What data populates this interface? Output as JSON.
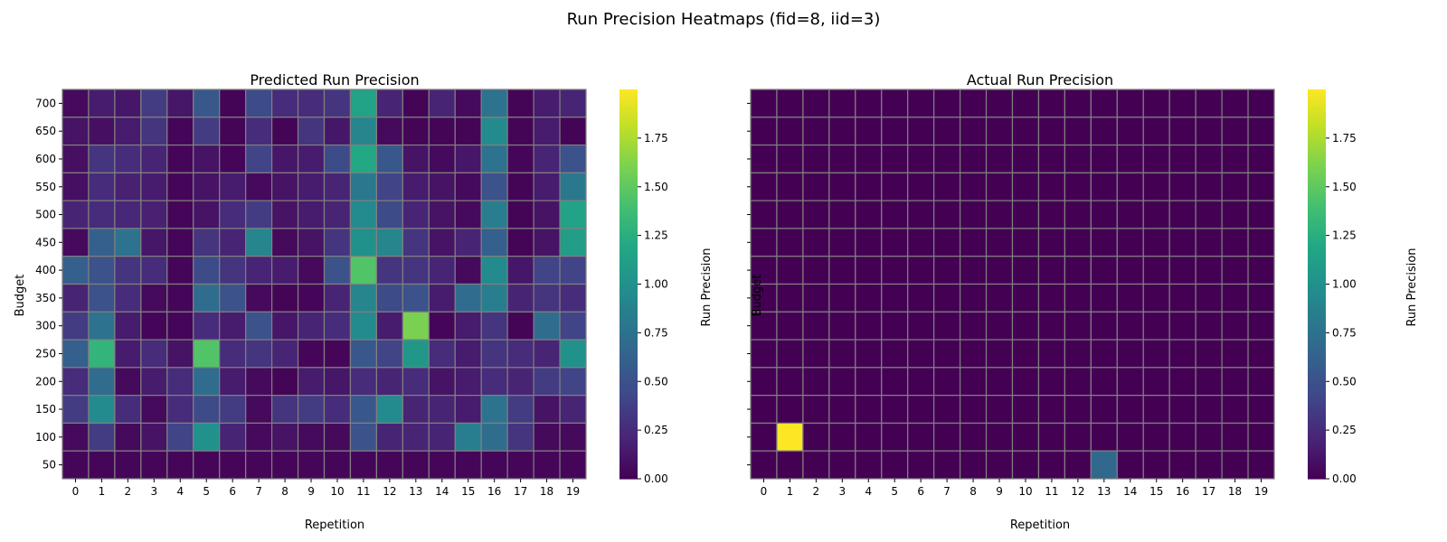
{
  "figure_title": "Run Precision Heatmaps (fid=8, iid=3)",
  "colormap": [
    "#440154",
    "#482475",
    "#414487",
    "#355f8d",
    "#2a788e",
    "#21918c",
    "#22a884",
    "#44bf70",
    "#7ad151",
    "#bddf26",
    "#fde725"
  ],
  "cell_border_color": "#808080",
  "chart_data": [
    {
      "type": "heatmap",
      "title": "Predicted Run Precision",
      "xlabel": "Repetition",
      "ylabel": "Budget",
      "x": [
        "0",
        "1",
        "2",
        "3",
        "4",
        "5",
        "6",
        "7",
        "8",
        "9",
        "10",
        "11",
        "12",
        "13",
        "14",
        "15",
        "16",
        "17",
        "18",
        "19"
      ],
      "y": [
        "700",
        "650",
        "600",
        "550",
        "500",
        "450",
        "400",
        "350",
        "300",
        "250",
        "200",
        "150",
        "100",
        "50"
      ],
      "colorbar_label": "Run Precision",
      "colorbar_ticks": [
        "0.00",
        "0.25",
        "0.50",
        "0.75",
        "1.00",
        "1.25",
        "1.50",
        "1.75"
      ],
      "vmin": 0,
      "vmax": 2.0,
      "values": [
        [
          0.05,
          0.15,
          0.12,
          0.35,
          0.12,
          0.55,
          0.02,
          0.45,
          0.25,
          0.25,
          0.3,
          1.15,
          0.2,
          0.02,
          0.2,
          0.05,
          0.75,
          0.02,
          0.15,
          0.2
        ],
        [
          0.1,
          0.08,
          0.15,
          0.3,
          0.03,
          0.35,
          0.02,
          0.25,
          0.02,
          0.3,
          0.12,
          0.9,
          0.05,
          0.02,
          0.02,
          0.02,
          0.95,
          0.02,
          0.15,
          0.02
        ],
        [
          0.08,
          0.3,
          0.25,
          0.2,
          0.03,
          0.1,
          0.03,
          0.4,
          0.12,
          0.15,
          0.45,
          1.2,
          0.55,
          0.1,
          0.05,
          0.12,
          0.75,
          0.03,
          0.2,
          0.5
        ],
        [
          0.08,
          0.25,
          0.18,
          0.15,
          0.03,
          0.1,
          0.15,
          0.05,
          0.1,
          0.15,
          0.2,
          0.8,
          0.4,
          0.15,
          0.1,
          0.05,
          0.5,
          0.02,
          0.15,
          0.8
        ],
        [
          0.2,
          0.25,
          0.22,
          0.18,
          0.03,
          0.1,
          0.25,
          0.35,
          0.1,
          0.15,
          0.2,
          0.95,
          0.45,
          0.2,
          0.1,
          0.05,
          0.85,
          0.02,
          0.1,
          1.15
        ],
        [
          0.05,
          0.6,
          0.75,
          0.12,
          0.03,
          0.3,
          0.2,
          0.9,
          0.05,
          0.1,
          0.3,
          1.0,
          0.9,
          0.3,
          0.1,
          0.2,
          0.6,
          0.02,
          0.1,
          1.1
        ],
        [
          0.6,
          0.5,
          0.3,
          0.25,
          0.03,
          0.45,
          0.3,
          0.2,
          0.15,
          0.05,
          0.5,
          1.45,
          0.3,
          0.3,
          0.2,
          0.05,
          0.95,
          0.12,
          0.4,
          0.4
        ],
        [
          0.2,
          0.5,
          0.25,
          0.05,
          0.03,
          0.7,
          0.5,
          0.05,
          0.02,
          0.03,
          0.2,
          0.9,
          0.45,
          0.5,
          0.15,
          0.7,
          0.85,
          0.2,
          0.3,
          0.25
        ],
        [
          0.35,
          0.75,
          0.15,
          0.03,
          0.03,
          0.25,
          0.15,
          0.5,
          0.12,
          0.2,
          0.25,
          0.95,
          0.15,
          1.6,
          0.03,
          0.15,
          0.3,
          0.02,
          0.7,
          0.4
        ],
        [
          0.6,
          1.3,
          0.15,
          0.25,
          0.1,
          1.45,
          0.25,
          0.3,
          0.2,
          0.03,
          0.03,
          0.55,
          0.4,
          1.05,
          0.25,
          0.15,
          0.3,
          0.25,
          0.2,
          1.0
        ],
        [
          0.25,
          0.7,
          0.05,
          0.15,
          0.25,
          0.7,
          0.15,
          0.05,
          0.02,
          0.15,
          0.12,
          0.25,
          0.2,
          0.25,
          0.1,
          0.15,
          0.25,
          0.2,
          0.35,
          0.4
        ],
        [
          0.35,
          0.95,
          0.25,
          0.05,
          0.25,
          0.45,
          0.35,
          0.05,
          0.3,
          0.35,
          0.25,
          0.55,
          0.95,
          0.2,
          0.2,
          0.15,
          0.75,
          0.35,
          0.1,
          0.2
        ],
        [
          0.05,
          0.35,
          0.05,
          0.1,
          0.4,
          1.0,
          0.2,
          0.05,
          0.1,
          0.05,
          0.05,
          0.5,
          0.2,
          0.2,
          0.2,
          0.85,
          0.7,
          0.3,
          0.05,
          0.05
        ],
        [
          0.03,
          0.03,
          0.03,
          0.03,
          0.03,
          0.03,
          0.03,
          0.03,
          0.03,
          0.03,
          0.03,
          0.03,
          0.03,
          0.03,
          0.03,
          0.03,
          0.03,
          0.03,
          0.03,
          0.03
        ]
      ]
    },
    {
      "type": "heatmap",
      "title": "Actual Run Precision",
      "xlabel": "Repetition",
      "ylabel": "Budget",
      "x": [
        "0",
        "1",
        "2",
        "3",
        "4",
        "5",
        "6",
        "7",
        "8",
        "9",
        "10",
        "11",
        "12",
        "13",
        "14",
        "15",
        "16",
        "17",
        "18",
        "19"
      ],
      "y": [
        "700",
        "650",
        "600",
        "550",
        "500",
        "450",
        "400",
        "350",
        "300",
        "250",
        "200",
        "150",
        "100",
        "50"
      ],
      "colorbar_label": "Run Precision",
      "colorbar_ticks": [
        "0.00",
        "0.25",
        "0.50",
        "0.75",
        "1.00",
        "1.25",
        "1.50",
        "1.75"
      ],
      "vmin": 0,
      "vmax": 2.0,
      "values": [
        [
          0,
          0,
          0,
          0,
          0,
          0,
          0,
          0,
          0,
          0,
          0,
          0,
          0,
          0,
          0,
          0,
          0,
          0,
          0,
          0
        ],
        [
          0,
          0,
          0,
          0,
          0,
          0,
          0,
          0,
          0,
          0,
          0,
          0,
          0,
          0,
          0,
          0,
          0,
          0,
          0,
          0
        ],
        [
          0,
          0,
          0,
          0,
          0,
          0,
          0,
          0,
          0,
          0,
          0,
          0,
          0,
          0,
          0,
          0,
          0,
          0,
          0,
          0
        ],
        [
          0,
          0,
          0,
          0,
          0,
          0,
          0,
          0,
          0,
          0,
          0,
          0,
          0,
          0,
          0,
          0,
          0,
          0,
          0,
          0
        ],
        [
          0,
          0,
          0,
          0,
          0,
          0,
          0,
          0,
          0,
          0,
          0,
          0,
          0,
          0,
          0,
          0,
          0,
          0,
          0,
          0
        ],
        [
          0,
          0,
          0,
          0,
          0,
          0,
          0,
          0,
          0,
          0,
          0,
          0,
          0,
          0,
          0,
          0,
          0,
          0,
          0,
          0
        ],
        [
          0,
          0,
          0,
          0,
          0,
          0,
          0,
          0,
          0,
          0,
          0,
          0,
          0,
          0,
          0,
          0,
          0,
          0,
          0,
          0
        ],
        [
          0,
          0,
          0,
          0,
          0,
          0,
          0,
          0,
          0,
          0,
          0,
          0,
          0,
          0,
          0,
          0,
          0,
          0,
          0,
          0
        ],
        [
          0,
          0,
          0,
          0,
          0,
          0,
          0,
          0,
          0,
          0,
          0,
          0,
          0,
          0,
          0,
          0,
          0,
          0,
          0,
          0
        ],
        [
          0,
          0,
          0,
          0,
          0,
          0,
          0,
          0,
          0,
          0,
          0,
          0,
          0,
          0,
          0,
          0,
          0,
          0,
          0,
          0
        ],
        [
          0,
          0,
          0,
          0,
          0,
          0,
          0,
          0,
          0,
          0,
          0,
          0,
          0,
          0,
          0,
          0,
          0,
          0,
          0,
          0
        ],
        [
          0,
          0,
          0,
          0,
          0,
          0,
          0,
          0,
          0,
          0,
          0,
          0,
          0,
          0,
          0,
          0,
          0,
          0,
          0,
          0
        ],
        [
          0,
          2.0,
          0,
          0,
          0,
          0,
          0,
          0,
          0,
          0,
          0,
          0,
          0,
          0,
          0,
          0,
          0,
          0,
          0,
          0
        ],
        [
          0,
          0,
          0,
          0,
          0,
          0,
          0,
          0,
          0,
          0,
          0,
          0,
          0,
          0.67,
          0,
          0,
          0,
          0,
          0,
          0
        ]
      ]
    }
  ]
}
